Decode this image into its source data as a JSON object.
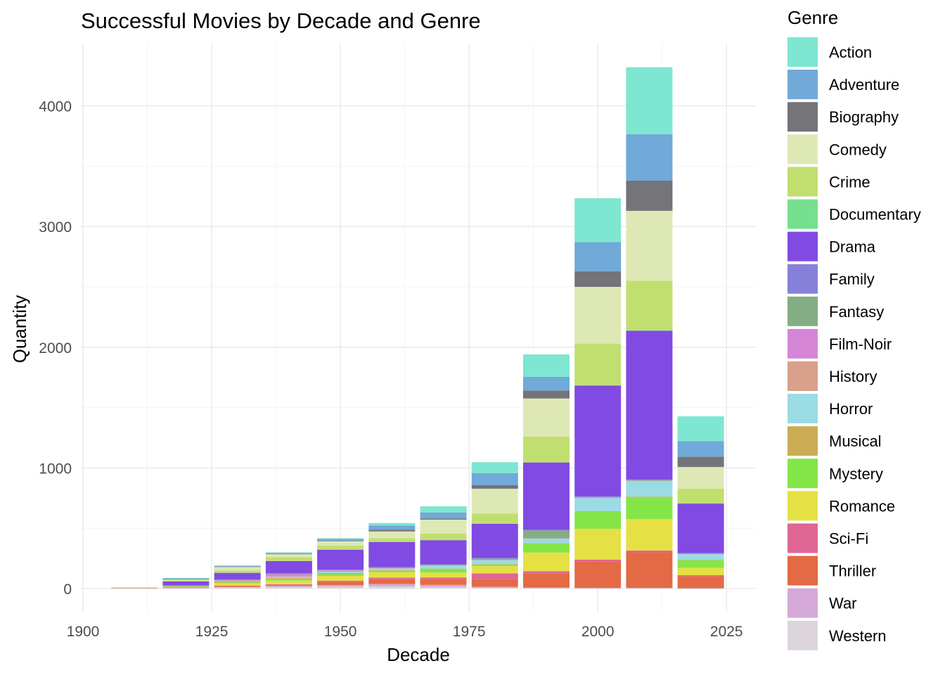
{
  "chart_data": {
    "type": "bar",
    "stacked": true,
    "title": "Successful Movies by Decade and Genre",
    "xlabel": "Decade",
    "ylabel": "Quantity",
    "legend_title": "Genre",
    "legend_position": "right",
    "grid": true,
    "xlim": [
      1900,
      2030
    ],
    "ylim": [
      -180,
      4420
    ],
    "x_ticks": [
      1900,
      1925,
      1950,
      1975,
      2000,
      2025
    ],
    "y_ticks": [
      0,
      1000,
      2000,
      3000,
      4000
    ],
    "x": [
      1910,
      1920,
      1930,
      1940,
      1950,
      1960,
      1970,
      1980,
      1990,
      2000,
      2010,
      2020
    ],
    "series": [
      {
        "name": "Western",
        "color": "#dcd5dc",
        "values": [
          0,
          4,
          8,
          12,
          15,
          18,
          12,
          5,
          3,
          2,
          2,
          1
        ]
      },
      {
        "name": "War",
        "color": "#d4a9d8",
        "values": [
          0,
          2,
          5,
          10,
          14,
          20,
          18,
          10,
          5,
          3,
          3,
          2
        ]
      },
      {
        "name": "Thriller",
        "color": "#e36a44",
        "values": [
          0,
          3,
          8,
          8,
          28,
          42,
          50,
          65,
          115,
          220,
          295,
          100
        ]
      },
      {
        "name": "Sci-Fi",
        "color": "#e06694",
        "values": [
          0,
          1,
          2,
          5,
          8,
          10,
          12,
          45,
          20,
          15,
          15,
          8
        ]
      },
      {
        "name": "Romance",
        "color": "#e5e044",
        "values": [
          0,
          5,
          20,
          30,
          40,
          45,
          40,
          60,
          155,
          255,
          260,
          60
        ]
      },
      {
        "name": "Mystery",
        "color": "#84e548",
        "values": [
          0,
          3,
          8,
          12,
          15,
          12,
          30,
          15,
          75,
          145,
          185,
          65
        ]
      },
      {
        "name": "Musical",
        "color": "#cbab54",
        "values": [
          0,
          3,
          10,
          10,
          8,
          5,
          3,
          2,
          2,
          2,
          2,
          1
        ]
      },
      {
        "name": "Horror",
        "color": "#9bdbe3",
        "values": [
          0,
          2,
          5,
          10,
          12,
          15,
          25,
          35,
          40,
          110,
          130,
          50
        ]
      },
      {
        "name": "History",
        "color": "#d9a08c",
        "values": [
          8,
          1,
          2,
          3,
          3,
          3,
          3,
          2,
          2,
          2,
          2,
          1
        ]
      },
      {
        "name": "Film-Noir",
        "color": "#d586d6",
        "values": [
          0,
          1,
          3,
          20,
          8,
          2,
          0,
          0,
          0,
          0,
          0,
          0
        ]
      },
      {
        "name": "Fantasy",
        "color": "#84ad84",
        "values": [
          0,
          1,
          2,
          3,
          3,
          3,
          5,
          10,
          65,
          5,
          5,
          3
        ]
      },
      {
        "name": "Family",
        "color": "#8680d9",
        "values": [
          0,
          1,
          2,
          3,
          3,
          3,
          3,
          3,
          3,
          3,
          3,
          2
        ]
      },
      {
        "name": "Drama",
        "color": "#814ae3",
        "values": [
          0,
          32,
          55,
          102,
          165,
          208,
          200,
          285,
          560,
          920,
          1235,
          412
        ]
      },
      {
        "name": "Documentary",
        "color": "#76e08e",
        "values": [
          0,
          0,
          0,
          0,
          0,
          0,
          0,
          0,
          0,
          3,
          3,
          2
        ]
      },
      {
        "name": "Crime",
        "color": "#c1df6f",
        "values": [
          0,
          8,
          20,
          32,
          35,
          32,
          55,
          85,
          215,
          345,
          410,
          120
        ]
      },
      {
        "name": "Comedy",
        "color": "#dee8b5",
        "values": [
          0,
          10,
          30,
          25,
          35,
          55,
          115,
          205,
          315,
          470,
          580,
          180
        ]
      },
      {
        "name": "Biography",
        "color": "#747479",
        "values": [
          0,
          1,
          2,
          3,
          5,
          15,
          10,
          30,
          65,
          130,
          250,
          85
        ]
      },
      {
        "name": "Adventure",
        "color": "#71a9d8",
        "values": [
          0,
          8,
          5,
          7,
          15,
          35,
          50,
          100,
          115,
          240,
          385,
          130
        ]
      },
      {
        "name": "Action",
        "color": "#7ee6d1",
        "values": [
          0,
          1,
          5,
          5,
          5,
          20,
          50,
          90,
          185,
          365,
          555,
          205
        ]
      }
    ]
  }
}
